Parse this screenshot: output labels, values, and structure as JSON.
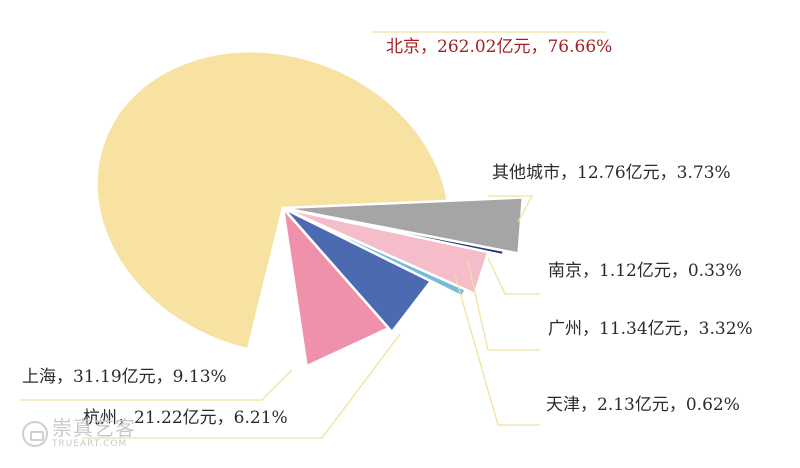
{
  "chart_data": {
    "type": "pie",
    "title": "",
    "unit": "亿元",
    "slices": [
      {
        "label": "北京",
        "value": 262.02,
        "percent": 76.66,
        "color": "#f7e2a2",
        "text": "北京，262.02亿元，76.66%"
      },
      {
        "label": "上海",
        "value": 31.19,
        "percent": 9.13,
        "color": "#ef91ab",
        "text": "上海，31.19亿元，9.13%"
      },
      {
        "label": "杭州",
        "value": 21.22,
        "percent": 6.21,
        "color": "#4c6ab2",
        "text": "杭州，21.22亿元，6.21%"
      },
      {
        "label": "天津",
        "value": 2.13,
        "percent": 0.62,
        "color": "#79b9de",
        "text": "天津，2.13亿元，0.62%"
      },
      {
        "label": "广州",
        "value": 11.34,
        "percent": 3.32,
        "color": "#f5bcc9",
        "text": "广州，11.34亿元，3.32%"
      },
      {
        "label": "南京",
        "value": 1.12,
        "percent": 0.33,
        "color": "#233a7a",
        "text": "南京，1.12亿元，0.33%"
      },
      {
        "label": "其他城市",
        "value": 12.76,
        "percent": 3.73,
        "color": "#a5a5a5",
        "text": "其他城市，12.76亿元，3.73%"
      }
    ],
    "highlight_label_color": "#a61e22",
    "label_color": "#2b2b2b",
    "leader_color": "#efe29e"
  },
  "watermark": {
    "cn": "崇真艺客",
    "en": "TRUEART.COM"
  }
}
